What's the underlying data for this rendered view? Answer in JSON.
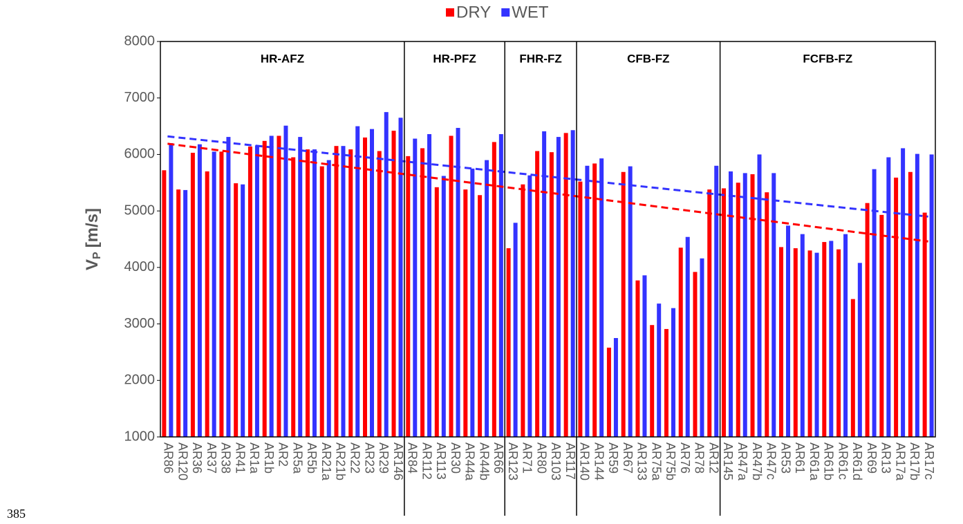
{
  "page_number": "385",
  "chart_data": {
    "type": "bar",
    "ylabel": {
      "symbol": "V",
      "subscript": "P",
      "unit": "[m/s]"
    },
    "categories": [
      "AR86",
      "AR120",
      "AR36",
      "AR37",
      "AR38",
      "AR41",
      "AR1a",
      "AR1b",
      "AR2",
      "AR5a",
      "AR5b",
      "AR21a",
      "AR21b",
      "AR22",
      "AR23",
      "AR29",
      "AR146",
      "AR84",
      "AR112",
      "AR113",
      "AR30",
      "AR44a",
      "AR44b",
      "AR66",
      "AR123",
      "AR71",
      "AR80",
      "AR103",
      "AR117",
      "AR140",
      "AR144",
      "AR59",
      "AR67",
      "AR133",
      "AR75a",
      "AR75b",
      "AR76",
      "AR78",
      "AR12",
      "AR145",
      "AR47a",
      "AR47b",
      "AR47c",
      "AR53",
      "AR61",
      "AR61a",
      "AR61b",
      "AR61c",
      "AR61d",
      "AR69",
      "AR13",
      "AR17a",
      "AR17b",
      "AR17c"
    ],
    "groups": [
      {
        "label": "HR-AFZ",
        "count": 17
      },
      {
        "label": "HR-PFZ",
        "count": 7
      },
      {
        "label": "FHR-FZ",
        "count": 5
      },
      {
        "label": "CFB-FZ",
        "count": 10
      },
      {
        "label": "FCFB-FZ",
        "count": 15
      }
    ],
    "series": [
      {
        "name": "DRY",
        "color": "#ff0000",
        "trend": [
          6190,
          4460
        ],
        "values": [
          5720,
          5380,
          6030,
          5700,
          6050,
          5490,
          6140,
          6240,
          6330,
          5950,
          6090,
          5790,
          6150,
          6090,
          6300,
          6060,
          6420,
          5970,
          6110,
          5420,
          6330,
          5380,
          5280,
          6220,
          4340,
          5470,
          6060,
          6040,
          6380,
          5520,
          5840,
          2580,
          5690,
          3770,
          2980,
          2910,
          4350,
          3920,
          5380,
          5400,
          5500,
          5650,
          5330,
          4360,
          4340,
          4300,
          4450,
          4320,
          3440,
          5140,
          4930,
          5590,
          5690,
          4970
        ]
      },
      {
        "name": "WET",
        "color": "#3333ff",
        "trend": [
          6320,
          4900
        ],
        "values": [
          6200,
          5370,
          6180,
          6050,
          6310,
          5470,
          6160,
          6330,
          6510,
          6310,
          6090,
          5900,
          6150,
          6500,
          6450,
          6750,
          6650,
          6280,
          6360,
          5620,
          6470,
          5750,
          5900,
          6360,
          4790,
          5630,
          6410,
          6310,
          6430,
          5800,
          5930,
          2750,
          5790,
          3860,
          3360,
          3280,
          4540,
          4160,
          5800,
          5700,
          5670,
          6000,
          5670,
          4740,
          4590,
          4260,
          4470,
          4590,
          4080,
          5740,
          5950,
          6110,
          6010,
          6000
        ]
      }
    ],
    "ylim": [
      1000,
      8000
    ],
    "yticks": [
      1000,
      2000,
      3000,
      4000,
      5000,
      6000,
      7000,
      8000
    ],
    "legend": "top"
  }
}
